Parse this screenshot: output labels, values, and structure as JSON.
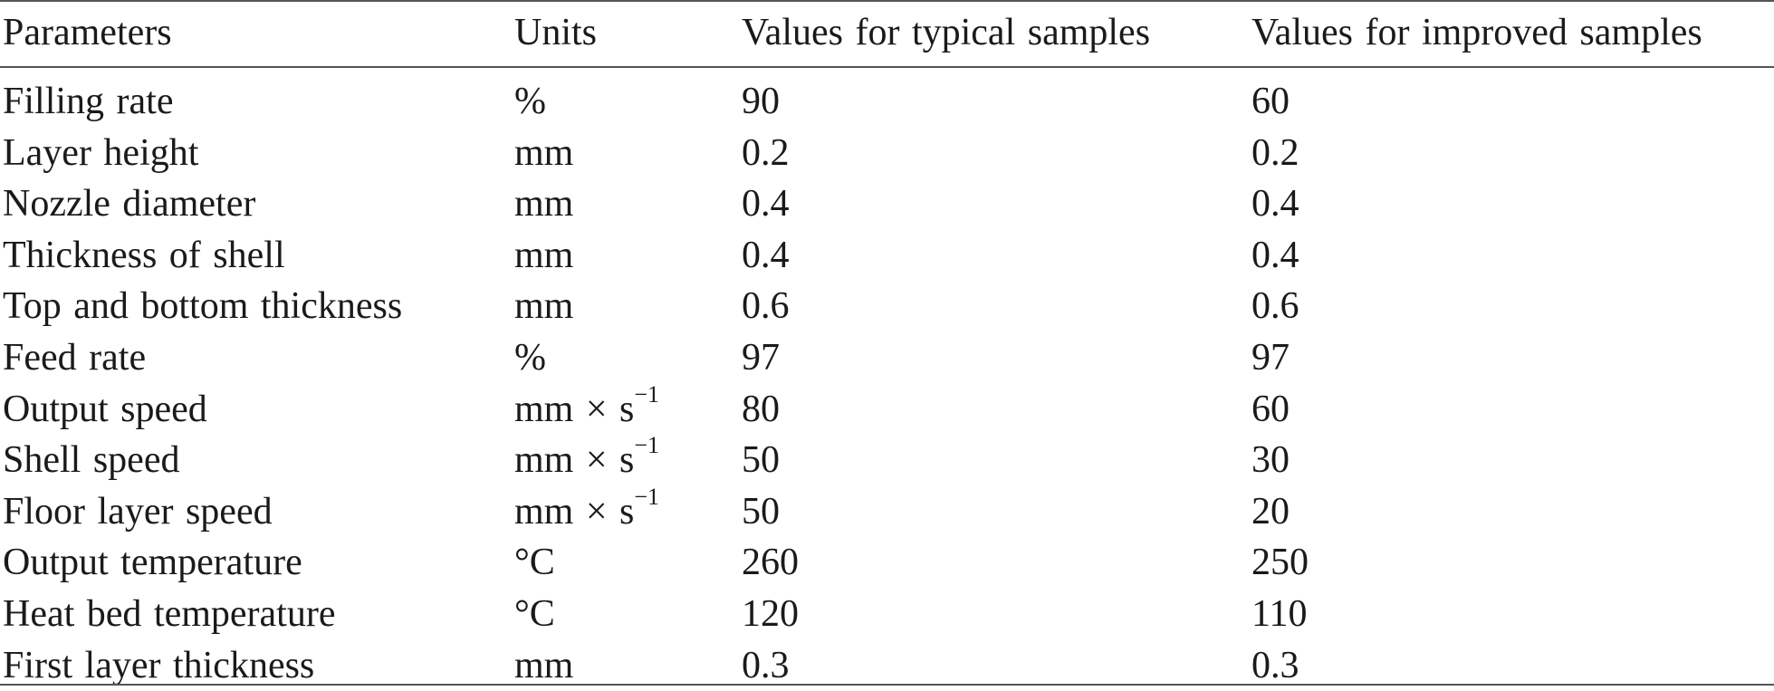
{
  "table": {
    "headers": [
      "Parameters",
      "Units",
      "Values for typical samples",
      "Values for improved samples"
    ],
    "rows": [
      {
        "parameter": "Filling rate",
        "unit": "%",
        "unit_sup": "",
        "typical": "90",
        "improved": "60"
      },
      {
        "parameter": "Layer height",
        "unit": "mm",
        "unit_sup": "",
        "typical": "0.2",
        "improved": "0.2"
      },
      {
        "parameter": "Nozzle diameter",
        "unit": "mm",
        "unit_sup": "",
        "typical": "0.4",
        "improved": "0.4"
      },
      {
        "parameter": "Thickness of shell",
        "unit": "mm",
        "unit_sup": "",
        "typical": "0.4",
        "improved": "0.4"
      },
      {
        "parameter": "Top and bottom thickness",
        "unit": "mm",
        "unit_sup": "",
        "typical": "0.6",
        "improved": "0.6"
      },
      {
        "parameter": "Feed rate",
        "unit": "%",
        "unit_sup": "",
        "typical": "97",
        "improved": "97"
      },
      {
        "parameter": "Output speed",
        "unit": "mm × s",
        "unit_sup": "−1",
        "typical": "80",
        "improved": "60"
      },
      {
        "parameter": "Shell speed",
        "unit": "mm × s",
        "unit_sup": "−1",
        "typical": "50",
        "improved": "30"
      },
      {
        "parameter": "Floor layer speed",
        "unit": "mm × s",
        "unit_sup": "−1",
        "typical": "50",
        "improved": "20"
      },
      {
        "parameter": "Output temperature",
        "unit": "°C",
        "unit_sup": "",
        "typical": "260",
        "improved": "250"
      },
      {
        "parameter": "Heat bed temperature",
        "unit": "°C",
        "unit_sup": "",
        "typical": "120",
        "improved": "110"
      },
      {
        "parameter": "First layer thickness",
        "unit": "mm",
        "unit_sup": "",
        "typical": "0.3",
        "improved": "0.3"
      }
    ]
  }
}
